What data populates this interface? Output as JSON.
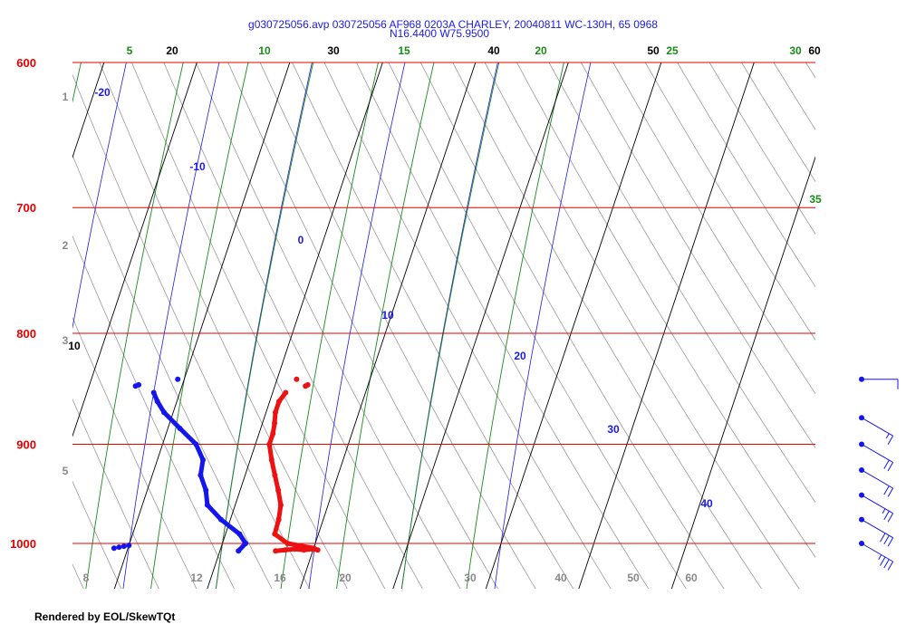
{
  "title": "g030725056.avp 030725056 AF968 0203A CHARLEY, 20040811 WC-130H, 65 0968",
  "subtitle": "N16.4400 W75.9500",
  "credit": "Rendered by EOL/SkewTQt",
  "colors": {
    "isobar": "#e60000",
    "isotherm": "#000000",
    "mixing_ratio": "#1a8a1a",
    "dry_adiabat": "#999999",
    "moist_adiabat": "#1a1ae6",
    "temperature": "#ee1111",
    "dewpoint": "#1515ee",
    "wind": "#1515ee"
  },
  "chart_data": {
    "type": "skew-t",
    "pressure_levels": [
      "600",
      "700",
      "800",
      "900",
      "1000"
    ],
    "isotherm_labels": [
      "10",
      "20",
      "30",
      "40",
      "50",
      "60"
    ],
    "mixing_ratio_labels": [
      "5",
      "10",
      "15",
      "20",
      "25",
      "30",
      "35"
    ],
    "moist_adiabat_labels": [
      "-20",
      "-10",
      "0",
      "10",
      "20",
      "30",
      "40"
    ],
    "dry_adiabat_labels": [
      "8",
      "12",
      "16",
      "20",
      "30",
      "40",
      "50",
      "60"
    ],
    "altitude_labels": [
      "1",
      "2",
      "3",
      "5"
    ],
    "temperature_profile": [
      {
        "p": 1008,
        "t": 26.0
      },
      {
        "p": 1007,
        "t": 27.0
      },
      {
        "p": 1006,
        "t": 28.0
      },
      {
        "p": 1007,
        "t": 29.0
      },
      {
        "p": 1006,
        "t": 30.0
      },
      {
        "p": 1007,
        "t": 30.5
      },
      {
        "p": 1005,
        "t": 30.0
      },
      {
        "p": 1000,
        "t": 27.0
      },
      {
        "p": 990,
        "t": 25.3
      },
      {
        "p": 975,
        "t": 25.2
      },
      {
        "p": 960,
        "t": 24.9
      },
      {
        "p": 945,
        "t": 24.1
      },
      {
        "p": 930,
        "t": 23.2
      },
      {
        "p": 915,
        "t": 22.3
      },
      {
        "p": 900,
        "t": 21.5
      },
      {
        "p": 890,
        "t": 21.5
      },
      {
        "p": 880,
        "t": 21.3
      },
      {
        "p": 870,
        "t": 21.0
      },
      {
        "p": 860,
        "t": 21.0
      },
      {
        "p": 852,
        "t": 21.4
      }
    ],
    "dewpoint_profile": [
      {
        "p": 1008,
        "t": 22.0
      },
      {
        "p": 1000,
        "t": 22.5
      },
      {
        "p": 990,
        "t": 21.5
      },
      {
        "p": 975,
        "t": 19.0
      },
      {
        "p": 960,
        "t": 17.0
      },
      {
        "p": 945,
        "t": 16.3
      },
      {
        "p": 930,
        "t": 15.2
      },
      {
        "p": 915,
        "t": 14.9
      },
      {
        "p": 900,
        "t": 13.6
      },
      {
        "p": 885,
        "t": 11.3
      },
      {
        "p": 870,
        "t": 9.0
      },
      {
        "p": 860,
        "t": 7.9
      },
      {
        "p": 852,
        "t": 7.2
      }
    ],
    "extra_temperature_points": [
      {
        "p": 840,
        "t": 22.1
      },
      {
        "p": 845,
        "t": 23.5
      },
      {
        "p": 846,
        "t": 23.3
      }
    ],
    "extra_dewpoint_points": [
      {
        "p": 840,
        "t": 9.3
      },
      {
        "p": 846,
        "t": 5.0
      },
      {
        "p": 845,
        "t": 5.3
      },
      {
        "p": 1005,
        "t": 8.5
      },
      {
        "p": 1004,
        "t": 9.0
      },
      {
        "p": 1003,
        "t": 9.5
      },
      {
        "p": 1002,
        "t": 10.0
      }
    ],
    "wind_barbs": [
      {
        "p": 840,
        "dir": 90,
        "speed": 10
      },
      {
        "p": 875,
        "dir": 60,
        "speed": 15
      },
      {
        "p": 900,
        "dir": 60,
        "speed": 20
      },
      {
        "p": 925,
        "dir": 60,
        "speed": 20
      },
      {
        "p": 950,
        "dir": 60,
        "speed": 25
      },
      {
        "p": 975,
        "dir": 60,
        "speed": 30
      },
      {
        "p": 1000,
        "dir": 60,
        "speed": 35
      }
    ]
  }
}
